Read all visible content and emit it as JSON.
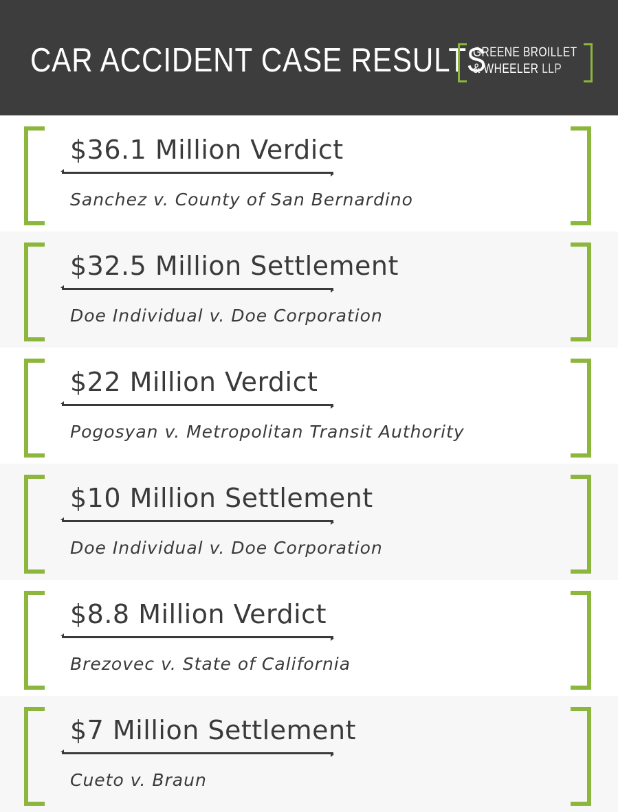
{
  "header": {
    "title": "CAR ACCIDENT CASE RESULTS",
    "logo": {
      "line1": "GREENE BROILLET",
      "line2": "& WHEELER",
      "suffix": "LLP"
    }
  },
  "colors": {
    "header_bg": "#3d3d3d",
    "accent": "#8cb63c",
    "text": "#3a3a3a",
    "alt_row": "#f7f7f7"
  },
  "results": [
    {
      "amount": "$36.1 Million Verdict",
      "case": "Sanchez v. County of San Bernardino"
    },
    {
      "amount": "$32.5 Million Settlement",
      "case": "Doe Individual v. Doe Corporation"
    },
    {
      "amount": "$22 Million Verdict",
      "case": "Pogosyan v. Metropolitan Transit Authority"
    },
    {
      "amount": "$10 Million Settlement",
      "case": "Doe Individual v. Doe Corporation"
    },
    {
      "amount": "$8.8 Million Verdict",
      "case": "Brezovec v. State of California"
    },
    {
      "amount": "$7 Million Settlement",
      "case": "Cueto v. Braun"
    }
  ]
}
